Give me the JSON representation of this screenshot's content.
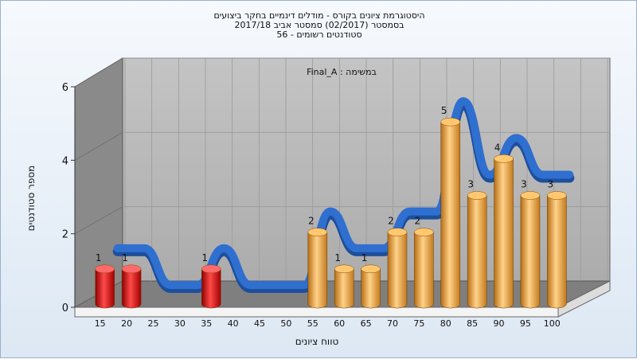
{
  "header": {
    "line1": "היסטוגרמת ציונים בקורס - מודלים דינמיים בחקר ביצועים",
    "line2": "בסמסטר  (02/2017)  סמסטר אביב 2017/18",
    "line3": "סטודנטים רשומים - 56"
  },
  "chart_data": {
    "type": "bar",
    "title": "היסטוגרמת ציונים בקורס - מודלים דינמיים בחקר ביצועים",
    "subtitle": "בסמסטר  (02/2017)  סמסטר אביב 2017/18 | סטודנטים רשומים - 56",
    "assignment_label": "במשימה : Final_A",
    "xlabel": "טווח ציונים",
    "ylabel": "מספר סטודנטים",
    "ylim": [
      0,
      6
    ],
    "yticks": [
      0,
      2,
      4,
      6
    ],
    "grid": true,
    "categories": [
      "15",
      "20",
      "25",
      "30",
      "35",
      "40",
      "45",
      "50",
      "55",
      "60",
      "65",
      "70",
      "75",
      "80",
      "85",
      "90",
      "95",
      "100"
    ],
    "values": [
      1,
      1,
      0,
      0,
      1,
      0,
      0,
      0,
      2,
      1,
      1,
      2,
      2,
      5,
      3,
      4,
      3,
      3
    ],
    "failing_color": "#d81818",
    "passing_color": "#f0a53a",
    "curve_color": "#2f6fd0",
    "curve_shadow_color": "#6e6e6e",
    "wall_color": "#b8b8b8",
    "side_wall_color": "#8a8a8a",
    "floor_color": "#7f7f7f"
  }
}
